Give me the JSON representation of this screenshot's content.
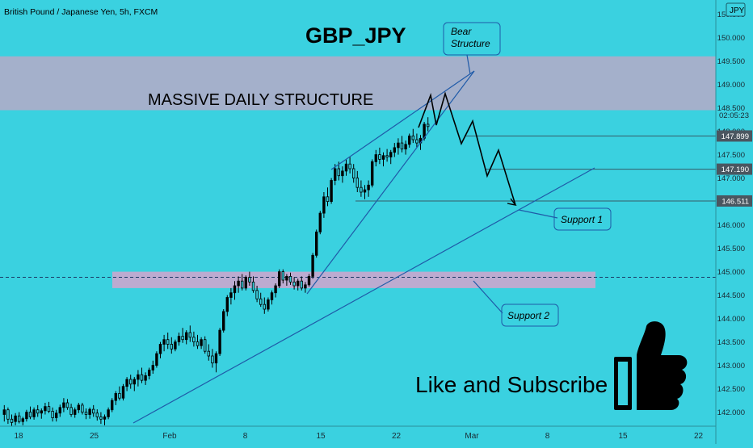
{
  "header": {
    "symbol_desc": "British Pound / Japanese Yen, 5h, FXCM",
    "currency_badge": "JPY"
  },
  "chart_data": {
    "type": "candlestick",
    "title": "GBP_JPY",
    "y_ticks": [
      "150.500",
      "150.000",
      "149.500",
      "149.000",
      "148.500",
      "148.000",
      "147.500",
      "147.000",
      "146.500",
      "146.000",
      "145.500",
      "145.000",
      "144.500",
      "144.000",
      "143.500",
      "143.000",
      "142.500",
      "142.000"
    ],
    "x_ticks": [
      "18",
      "25",
      "Feb",
      "8",
      "15",
      "22",
      "Mar",
      "8",
      "15",
      "22"
    ],
    "ylim": [
      141.7,
      150.7
    ],
    "price_labels": [
      {
        "text": "02:05:23",
        "value": 148.35,
        "kind": "countdown"
      },
      {
        "text": "147.899",
        "value": 147.899,
        "kind": "level"
      },
      {
        "text": "147.190",
        "value": 147.19,
        "kind": "level"
      },
      {
        "text": "146.511",
        "value": 146.511,
        "kind": "level"
      }
    ],
    "zones": [
      {
        "label": "MASSIVE DAILY STRUCTURE",
        "from": 148.45,
        "to": 149.6
      },
      {
        "label": "",
        "from": 144.65,
        "to": 145.0
      }
    ],
    "dashed_level": 144.88,
    "annotations": {
      "bear_structure": "Bear\nStructure",
      "support_1": "Support 1",
      "support_2": "Support 2",
      "cta": "Like and Subscribe"
    },
    "colors": {
      "background": "#3ad1e0",
      "upper_zone": "#aaaec9",
      "lower_zone": "#c3a9cf",
      "candle": "#000000",
      "trendline": "#1f5aa8",
      "text": "#000000"
    },
    "candles": [
      {
        "o": 141.95,
        "h": 142.15,
        "l": 141.8,
        "c": 142.05
      },
      {
        "o": 142.05,
        "h": 142.1,
        "l": 141.75,
        "c": 141.85
      },
      {
        "o": 141.85,
        "h": 141.95,
        "l": 141.7,
        "c": 141.78
      },
      {
        "o": 141.8,
        "h": 141.98,
        "l": 141.72,
        "c": 141.92
      },
      {
        "o": 141.92,
        "h": 142.0,
        "l": 141.76,
        "c": 141.8
      },
      {
        "o": 141.8,
        "h": 141.9,
        "l": 141.72,
        "c": 141.86
      },
      {
        "o": 141.86,
        "h": 142.05,
        "l": 141.8,
        "c": 142.0
      },
      {
        "o": 142.0,
        "h": 142.12,
        "l": 141.85,
        "c": 141.9
      },
      {
        "o": 141.9,
        "h": 142.1,
        "l": 141.84,
        "c": 142.05
      },
      {
        "o": 142.05,
        "h": 142.15,
        "l": 141.9,
        "c": 141.98
      },
      {
        "o": 141.98,
        "h": 142.08,
        "l": 141.86,
        "c": 142.03
      },
      {
        "o": 142.03,
        "h": 142.2,
        "l": 141.95,
        "c": 142.12
      },
      {
        "o": 142.12,
        "h": 142.22,
        "l": 141.98,
        "c": 142.02
      },
      {
        "o": 142.02,
        "h": 142.1,
        "l": 141.8,
        "c": 141.88
      },
      {
        "o": 141.88,
        "h": 142.05,
        "l": 141.8,
        "c": 141.98
      },
      {
        "o": 141.98,
        "h": 142.16,
        "l": 141.9,
        "c": 142.1
      },
      {
        "o": 142.1,
        "h": 142.3,
        "l": 142.0,
        "c": 142.2
      },
      {
        "o": 142.2,
        "h": 142.28,
        "l": 142.05,
        "c": 142.1
      },
      {
        "o": 142.1,
        "h": 142.18,
        "l": 141.9,
        "c": 141.95
      },
      {
        "o": 141.95,
        "h": 142.1,
        "l": 141.88,
        "c": 142.05
      },
      {
        "o": 142.05,
        "h": 142.2,
        "l": 141.98,
        "c": 142.15
      },
      {
        "o": 142.15,
        "h": 142.2,
        "l": 141.95,
        "c": 142.0
      },
      {
        "o": 142.0,
        "h": 142.08,
        "l": 141.85,
        "c": 141.95
      },
      {
        "o": 141.95,
        "h": 142.1,
        "l": 141.86,
        "c": 142.06
      },
      {
        "o": 142.06,
        "h": 142.15,
        "l": 141.9,
        "c": 141.98
      },
      {
        "o": 141.98,
        "h": 142.06,
        "l": 141.82,
        "c": 141.9
      },
      {
        "o": 141.9,
        "h": 142.0,
        "l": 141.75,
        "c": 141.85
      },
      {
        "o": 141.85,
        "h": 141.95,
        "l": 141.72,
        "c": 141.9
      },
      {
        "o": 141.9,
        "h": 142.1,
        "l": 141.85,
        "c": 142.05
      },
      {
        "o": 142.05,
        "h": 142.3,
        "l": 142.0,
        "c": 142.25
      },
      {
        "o": 142.25,
        "h": 142.45,
        "l": 142.15,
        "c": 142.4
      },
      {
        "o": 142.4,
        "h": 142.55,
        "l": 142.25,
        "c": 142.3
      },
      {
        "o": 142.3,
        "h": 142.6,
        "l": 142.25,
        "c": 142.55
      },
      {
        "o": 142.55,
        "h": 142.75,
        "l": 142.45,
        "c": 142.7
      },
      {
        "o": 142.7,
        "h": 142.8,
        "l": 142.5,
        "c": 142.6
      },
      {
        "o": 142.6,
        "h": 142.75,
        "l": 142.45,
        "c": 142.7
      },
      {
        "o": 142.7,
        "h": 142.9,
        "l": 142.55,
        "c": 142.8
      },
      {
        "o": 142.8,
        "h": 142.95,
        "l": 142.62,
        "c": 142.68
      },
      {
        "o": 142.68,
        "h": 142.85,
        "l": 142.58,
        "c": 142.78
      },
      {
        "o": 142.78,
        "h": 142.95,
        "l": 142.7,
        "c": 142.9
      },
      {
        "o": 142.9,
        "h": 143.1,
        "l": 142.82,
        "c": 143.0
      },
      {
        "o": 143.0,
        "h": 143.3,
        "l": 142.95,
        "c": 143.25
      },
      {
        "o": 143.25,
        "h": 143.5,
        "l": 143.15,
        "c": 143.45
      },
      {
        "o": 143.45,
        "h": 143.65,
        "l": 143.3,
        "c": 143.55
      },
      {
        "o": 143.55,
        "h": 143.7,
        "l": 143.35,
        "c": 143.45
      },
      {
        "o": 143.45,
        "h": 143.6,
        "l": 143.25,
        "c": 143.35
      },
      {
        "o": 143.35,
        "h": 143.55,
        "l": 143.3,
        "c": 143.5
      },
      {
        "o": 143.5,
        "h": 143.7,
        "l": 143.42,
        "c": 143.62
      },
      {
        "o": 143.62,
        "h": 143.8,
        "l": 143.48,
        "c": 143.55
      },
      {
        "o": 143.55,
        "h": 143.75,
        "l": 143.45,
        "c": 143.7
      },
      {
        "o": 143.7,
        "h": 143.85,
        "l": 143.5,
        "c": 143.6
      },
      {
        "o": 143.6,
        "h": 143.72,
        "l": 143.4,
        "c": 143.5
      },
      {
        "o": 143.5,
        "h": 143.65,
        "l": 143.35,
        "c": 143.42
      },
      {
        "o": 143.42,
        "h": 143.6,
        "l": 143.35,
        "c": 143.55
      },
      {
        "o": 143.55,
        "h": 143.62,
        "l": 143.25,
        "c": 143.3
      },
      {
        "o": 143.3,
        "h": 143.45,
        "l": 143.1,
        "c": 143.2
      },
      {
        "o": 143.2,
        "h": 143.35,
        "l": 142.95,
        "c": 143.05
      },
      {
        "o": 143.05,
        "h": 143.3,
        "l": 142.85,
        "c": 143.25
      },
      {
        "o": 143.25,
        "h": 143.8,
        "l": 143.2,
        "c": 143.75
      },
      {
        "o": 143.75,
        "h": 144.2,
        "l": 143.7,
        "c": 144.15
      },
      {
        "o": 144.15,
        "h": 144.5,
        "l": 144.05,
        "c": 144.45
      },
      {
        "o": 144.45,
        "h": 144.65,
        "l": 144.3,
        "c": 144.55
      },
      {
        "o": 144.55,
        "h": 144.8,
        "l": 144.4,
        "c": 144.7
      },
      {
        "o": 144.7,
        "h": 144.9,
        "l": 144.55,
        "c": 144.8
      },
      {
        "o": 144.8,
        "h": 144.95,
        "l": 144.6,
        "c": 144.65
      },
      {
        "o": 144.65,
        "h": 144.92,
        "l": 144.6,
        "c": 144.88
      },
      {
        "o": 144.88,
        "h": 145.0,
        "l": 144.7,
        "c": 144.78
      },
      {
        "o": 144.78,
        "h": 144.9,
        "l": 144.55,
        "c": 144.6
      },
      {
        "o": 144.6,
        "h": 144.7,
        "l": 144.35,
        "c": 144.42
      },
      {
        "o": 144.42,
        "h": 144.55,
        "l": 144.25,
        "c": 144.3
      },
      {
        "o": 144.3,
        "h": 144.45,
        "l": 144.1,
        "c": 144.2
      },
      {
        "o": 144.2,
        "h": 144.45,
        "l": 144.15,
        "c": 144.4
      },
      {
        "o": 144.4,
        "h": 144.6,
        "l": 144.3,
        "c": 144.55
      },
      {
        "o": 144.55,
        "h": 144.75,
        "l": 144.45,
        "c": 144.7
      },
      {
        "o": 144.7,
        "h": 145.05,
        "l": 144.65,
        "c": 145.0
      },
      {
        "o": 145.0,
        "h": 145.05,
        "l": 144.75,
        "c": 144.82
      },
      {
        "o": 144.82,
        "h": 144.95,
        "l": 144.7,
        "c": 144.9
      },
      {
        "o": 144.9,
        "h": 144.98,
        "l": 144.72,
        "c": 144.78
      },
      {
        "o": 144.78,
        "h": 144.88,
        "l": 144.62,
        "c": 144.7
      },
      {
        "o": 144.7,
        "h": 144.85,
        "l": 144.6,
        "c": 144.8
      },
      {
        "o": 144.8,
        "h": 144.9,
        "l": 144.6,
        "c": 144.65
      },
      {
        "o": 144.65,
        "h": 144.78,
        "l": 144.55,
        "c": 144.72
      },
      {
        "o": 144.72,
        "h": 144.95,
        "l": 144.68,
        "c": 144.9
      },
      {
        "o": 144.9,
        "h": 145.4,
        "l": 144.85,
        "c": 145.35
      },
      {
        "o": 145.35,
        "h": 145.9,
        "l": 145.3,
        "c": 145.85
      },
      {
        "o": 145.85,
        "h": 146.3,
        "l": 145.8,
        "c": 146.25
      },
      {
        "o": 146.25,
        "h": 146.7,
        "l": 146.15,
        "c": 146.6
      },
      {
        "o": 146.6,
        "h": 146.8,
        "l": 146.4,
        "c": 146.5
      },
      {
        "o": 146.5,
        "h": 147.0,
        "l": 146.45,
        "c": 146.95
      },
      {
        "o": 146.95,
        "h": 147.3,
        "l": 146.85,
        "c": 147.2
      },
      {
        "o": 147.2,
        "h": 147.35,
        "l": 146.95,
        "c": 147.05
      },
      {
        "o": 147.05,
        "h": 147.25,
        "l": 146.9,
        "c": 147.15
      },
      {
        "o": 147.15,
        "h": 147.4,
        "l": 147.05,
        "c": 147.3
      },
      {
        "o": 147.3,
        "h": 147.45,
        "l": 147.1,
        "c": 147.2
      },
      {
        "o": 147.2,
        "h": 147.3,
        "l": 146.9,
        "c": 147.0
      },
      {
        "o": 147.0,
        "h": 147.15,
        "l": 146.7,
        "c": 146.8
      },
      {
        "o": 146.8,
        "h": 146.95,
        "l": 146.6,
        "c": 146.7
      },
      {
        "o": 146.7,
        "h": 146.85,
        "l": 146.55,
        "c": 146.75
      },
      {
        "o": 146.75,
        "h": 146.95,
        "l": 146.6,
        "c": 146.85
      },
      {
        "o": 146.85,
        "h": 147.4,
        "l": 146.8,
        "c": 147.35
      },
      {
        "o": 147.35,
        "h": 147.6,
        "l": 147.25,
        "c": 147.5
      },
      {
        "o": 147.5,
        "h": 147.65,
        "l": 147.3,
        "c": 147.4
      },
      {
        "o": 147.4,
        "h": 147.55,
        "l": 147.25,
        "c": 147.48
      },
      {
        "o": 147.48,
        "h": 147.62,
        "l": 147.35,
        "c": 147.45
      },
      {
        "o": 147.45,
        "h": 147.6,
        "l": 147.3,
        "c": 147.55
      },
      {
        "o": 147.55,
        "h": 147.75,
        "l": 147.45,
        "c": 147.65
      },
      {
        "o": 147.65,
        "h": 147.85,
        "l": 147.5,
        "c": 147.75
      },
      {
        "o": 147.75,
        "h": 147.9,
        "l": 147.55,
        "c": 147.62
      },
      {
        "o": 147.62,
        "h": 147.8,
        "l": 147.5,
        "c": 147.72
      },
      {
        "o": 147.72,
        "h": 147.95,
        "l": 147.65,
        "c": 147.9
      },
      {
        "o": 147.9,
        "h": 148.05,
        "l": 147.75,
        "c": 147.82
      },
      {
        "o": 147.82,
        "h": 147.95,
        "l": 147.65,
        "c": 147.75
      },
      {
        "o": 147.75,
        "h": 147.92,
        "l": 147.6,
        "c": 147.85
      },
      {
        "o": 147.85,
        "h": 148.2,
        "l": 147.8,
        "c": 148.15
      },
      {
        "o": 148.15,
        "h": 148.3,
        "l": 148.0,
        "c": 148.1
      }
    ]
  }
}
